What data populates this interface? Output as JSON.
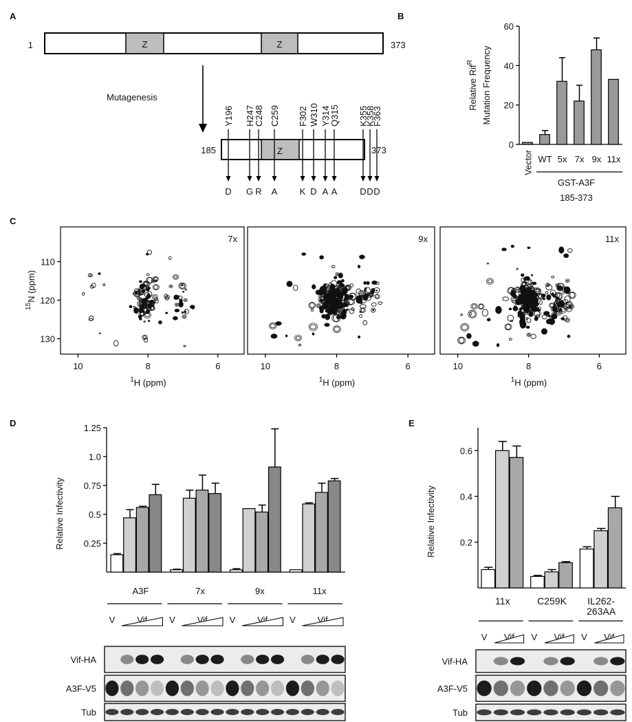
{
  "panel_labels": [
    "A",
    "B",
    "C",
    "D",
    "E"
  ],
  "diagram": {
    "full_start": "1",
    "full_end": "373",
    "domain": "Z",
    "arrow_label": "Mutagenesis",
    "fragment_start": "185",
    "fragment_end": "373",
    "mutations": [
      {
        "site": "Y196",
        "to": "D"
      },
      {
        "site": "H247",
        "to": "G"
      },
      {
        "site": "C248",
        "to": "R"
      },
      {
        "site": "C259",
        "to": "A"
      },
      {
        "site": "F302",
        "to": "K"
      },
      {
        "site": "W310",
        "to": "D"
      },
      {
        "site": "Y314",
        "to": "A"
      },
      {
        "site": "Q315",
        "to": "A"
      },
      {
        "site": "K355",
        "to": "D"
      },
      {
        "site": "K358",
        "to": "D"
      },
      {
        "site": "F363",
        "to": "D"
      }
    ]
  },
  "chart_data": [
    {
      "type": "bar",
      "y_label": [
        "Relative Rif",
        "R",
        "Mutation Frequency"
      ],
      "categories": [
        "Vector",
        "WT",
        "5x",
        "7x",
        "9x",
        "11x"
      ],
      "values": [
        1,
        5,
        32,
        22,
        48,
        33
      ],
      "errors": [
        0,
        2,
        12,
        8,
        6,
        0
      ],
      "color": "#9a9a9a",
      "ylim": [
        0,
        60
      ],
      "yticks": [
        0,
        20,
        40,
        60
      ],
      "group_label": [
        "GST-A3F",
        "185-373"
      ]
    },
    {
      "type": "contour",
      "label": "7x",
      "x_label": [
        "1",
        "H  (ppm)"
      ],
      "y_label": [
        "15",
        "N (ppm)"
      ],
      "xlim": [
        10.5,
        5.25
      ],
      "ylim": [
        101,
        134
      ],
      "xticks": [
        10,
        8,
        6
      ],
      "yticks": [
        110,
        120,
        130
      ]
    },
    {
      "type": "contour",
      "label": "9x",
      "x_label": [
        "1",
        "H  (ppm)"
      ],
      "xlim": [
        10.5,
        5.25
      ],
      "ylim": [
        101,
        134
      ],
      "xticks": [
        10,
        8,
        6
      ]
    },
    {
      "type": "contour",
      "label": "11x",
      "x_label": [
        "1",
        "H  (ppm)"
      ],
      "xlim": [
        10.5,
        5.25
      ],
      "ylim": [
        101,
        134
      ],
      "xticks": [
        10,
        8,
        6
      ]
    },
    {
      "type": "bar",
      "y_label": [
        "Relative Infectivity"
      ],
      "categories": [
        "A3F",
        "7x",
        "9x",
        "11x"
      ],
      "series": [
        {
          "color": "#ffffff",
          "values": [
            0.15,
            0.02,
            0.02,
            0.02
          ],
          "errors": [
            0.01,
            0.005,
            0.01,
            0
          ]
        },
        {
          "color": "#d0d0d0",
          "values": [
            0.47,
            0.64,
            0.55,
            0.59
          ],
          "errors": [
            0.07,
            0.07,
            0,
            0.01
          ]
        },
        {
          "color": "#a8a8a8",
          "values": [
            0.56,
            0.71,
            0.52,
            0.69
          ],
          "errors": [
            0.01,
            0.13,
            0.06,
            0.08
          ]
        },
        {
          "color": "#888888",
          "values": [
            0.67,
            0.68,
            0.91,
            0.79
          ],
          "errors": [
            0.09,
            0.09,
            0.33,
            0.02
          ]
        }
      ],
      "ylim": [
        0,
        1.25
      ],
      "yticks": [
        0.25,
        0.5,
        0.75,
        {
          "value": 1,
          "label": "1.0"
        },
        1.25
      ],
      "lane_labels": [
        "V",
        "Vif"
      ],
      "blot_labels": [
        "Vif-HA",
        "A3F-V5",
        "Tub"
      ]
    },
    {
      "type": "bar",
      "y_label": [
        "Relative Infectivity"
      ],
      "categories": [
        "11x",
        "C259K",
        "IL262-263AA"
      ],
      "series": [
        {
          "color": "#ffffff",
          "values": [
            0.08,
            0.05,
            0.17
          ],
          "errors": [
            0.01,
            0.005,
            0.01
          ]
        },
        {
          "color": "#d0d0d0",
          "values": [
            0.6,
            0.07,
            0.25
          ],
          "errors": [
            0.04,
            0.01,
            0.01
          ]
        },
        {
          "color": "#a8a8a8",
          "values": [
            0.57,
            0.11,
            0.35
          ],
          "errors": [
            0.05,
            0.005,
            0.05
          ]
        }
      ],
      "ylim": [
        0,
        0.7
      ],
      "yticks": [
        0.2,
        0.4,
        0.6
      ],
      "lane_labels": [
        "V",
        "Vif"
      ],
      "blot_labels": [
        "Vif-HA",
        "A3F-V5",
        "Tub"
      ]
    }
  ]
}
